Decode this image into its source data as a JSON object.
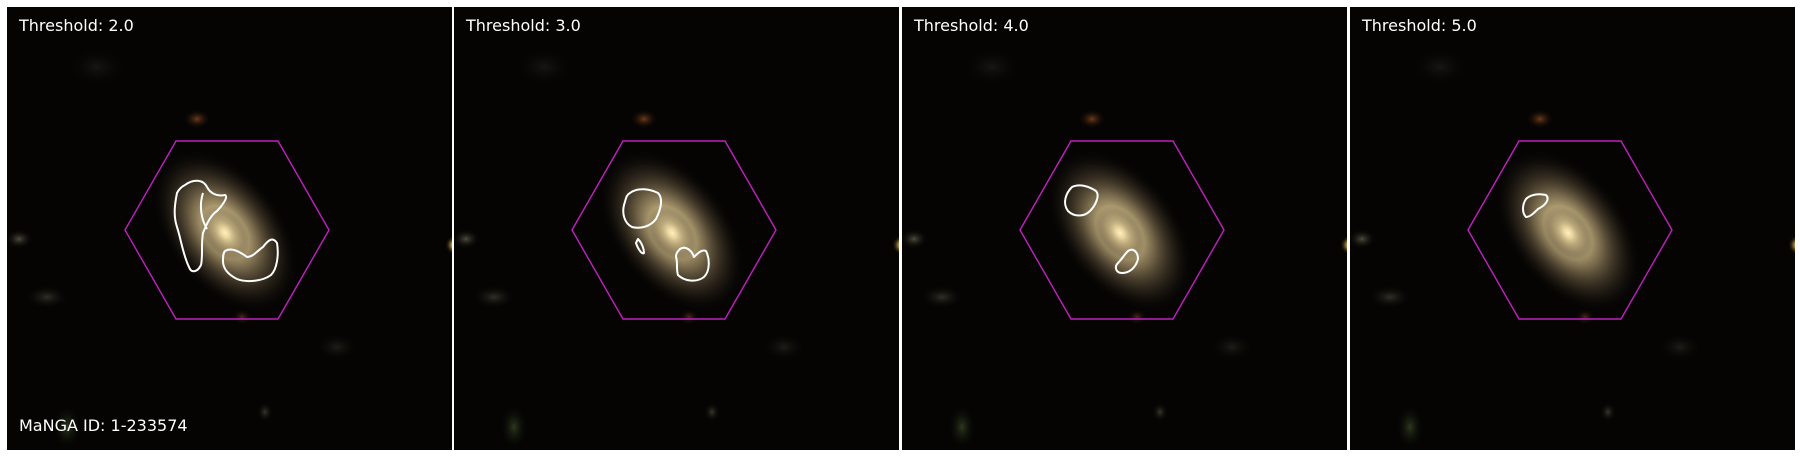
{
  "galaxy": {
    "manga_id_label": "MaNGA ID: 1-233574"
  },
  "panels": [
    {
      "title": "Threshold: 2.0",
      "threshold": 2.0
    },
    {
      "title": "Threshold: 3.0",
      "threshold": 3.0
    },
    {
      "title": "Threshold: 4.0",
      "threshold": 4.0
    },
    {
      "title": "Threshold: 5.0",
      "threshold": 5.0
    }
  ],
  "colors": {
    "background": "#050403",
    "hexagon_outline": "#c020c0",
    "contour": "#ffffff",
    "galaxy_core": "#ffe8a0",
    "text": "#ffffff"
  },
  "icons": {
    "hexagon": "ifu-hexagon-outline",
    "contour": "detection-contour"
  }
}
